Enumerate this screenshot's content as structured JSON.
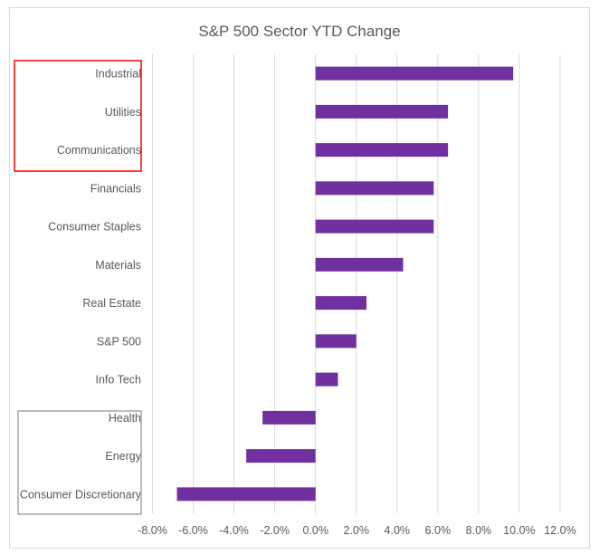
{
  "chart_data": {
    "type": "bar",
    "orientation": "horizontal",
    "title": "S&P 500 Sector YTD Change",
    "xlabel": "",
    "ylabel": "",
    "xlim": [
      -8,
      12
    ],
    "x_ticks": [
      "-8.0%",
      "-6.0%",
      "-4.0%",
      "-2.0%",
      "0.0%",
      "2.0%",
      "4.0%",
      "6.0%",
      "8.0%",
      "10.0%",
      "12.0%"
    ],
    "grid": true,
    "categories": [
      "Industrial",
      "Utilities",
      "Communications",
      "Financials",
      "Consumer Staples",
      "Materials",
      "Real Estate",
      "S&P 500",
      "Info Tech",
      "Health",
      "Energy",
      "Consumer Discretionary"
    ],
    "values": [
      9.7,
      6.5,
      6.5,
      5.8,
      5.8,
      4.3,
      2.5,
      2.0,
      1.1,
      -2.6,
      -3.4,
      -6.8
    ],
    "unit": "%",
    "bar_color": "#7030a0",
    "highlight_top_color": "#ff0000",
    "highlight_bottom_color": "#a6a6a6"
  }
}
